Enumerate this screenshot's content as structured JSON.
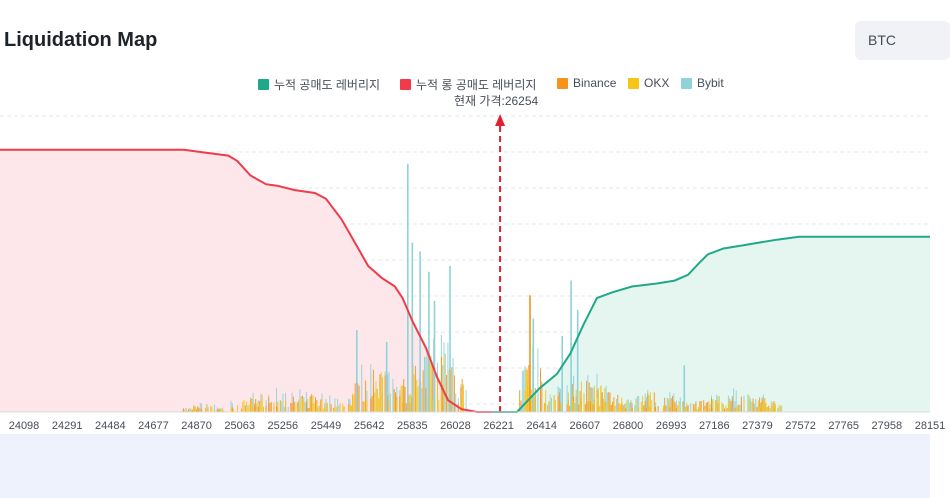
{
  "header": {
    "title": "Liquidation Map",
    "symbol": "BTC"
  },
  "legend": [
    {
      "label": "누적 공매도 레버리지",
      "color": "#1fa88a"
    },
    {
      "label": "누적 롱 공매도 레버리지",
      "color": "#ef3b4a"
    },
    {
      "label": "Binance",
      "color": "#f7931a"
    },
    {
      "label": "OKX",
      "color": "#f5c518"
    },
    {
      "label": "Bybit",
      "color": "#8fd3d8"
    }
  ],
  "current_price_label": "현재 가격:26254",
  "chart_data": {
    "type": "bar",
    "current_price": 26254,
    "xlim": [
      24002,
      28190
    ],
    "x_tick_labels": [
      24098,
      24291,
      24484,
      24677,
      24870,
      25063,
      25256,
      25449,
      25642,
      25835,
      26028,
      26221,
      26414,
      26607,
      26800,
      26993,
      27186,
      27379,
      27572,
      27765,
      27958,
      28151
    ],
    "grid": true,
    "legend_placement": "top-center",
    "cumulative_long": {
      "name": "누적 롱 공매도 레버리지",
      "color": "#ef3b4a",
      "fill": "#fde7ea",
      "points": [
        [
          24002,
          0.898
        ],
        [
          24830,
          0.898
        ],
        [
          24930,
          0.888
        ],
        [
          25030,
          0.878
        ],
        [
          25070,
          0.86
        ],
        [
          25130,
          0.81
        ],
        [
          25200,
          0.78
        ],
        [
          25250,
          0.775
        ],
        [
          25330,
          0.76
        ],
        [
          25420,
          0.75
        ],
        [
          25470,
          0.73
        ],
        [
          25540,
          0.66
        ],
        [
          25600,
          0.58
        ],
        [
          25660,
          0.5
        ],
        [
          25720,
          0.46
        ],
        [
          25780,
          0.43
        ],
        [
          25815,
          0.39
        ],
        [
          25860,
          0.31
        ],
        [
          25920,
          0.22
        ],
        [
          25970,
          0.12
        ],
        [
          26020,
          0.04
        ],
        [
          26080,
          0.01
        ],
        [
          26150,
          0.0
        ],
        [
          26221,
          0.0
        ]
      ]
    },
    "cumulative_short": {
      "name": "누적 공매도 레버리지",
      "color": "#1fa88a",
      "fill": "#e5f5f0",
      "points": [
        [
          26221,
          0.0
        ],
        [
          26330,
          0.0
        ],
        [
          26380,
          0.04
        ],
        [
          26430,
          0.08
        ],
        [
          26510,
          0.13
        ],
        [
          26570,
          0.2
        ],
        [
          26630,
          0.3
        ],
        [
          26690,
          0.39
        ],
        [
          26760,
          0.41
        ],
        [
          26850,
          0.43
        ],
        [
          26960,
          0.44
        ],
        [
          27040,
          0.45
        ],
        [
          27100,
          0.47
        ],
        [
          27150,
          0.51
        ],
        [
          27190,
          0.54
        ],
        [
          27260,
          0.56
        ],
        [
          27340,
          0.57
        ],
        [
          27420,
          0.58
        ],
        [
          27500,
          0.59
        ],
        [
          27600,
          0.6
        ],
        [
          27800,
          0.6
        ],
        [
          28190,
          0.6
        ]
      ]
    },
    "exchange_clusters": [
      {
        "from": 24820,
        "to": 25010,
        "peak": 0.035
      },
      {
        "from": 25040,
        "to": 25550,
        "peak": 0.09
      },
      {
        "from": 25570,
        "to": 25790,
        "peak": 0.2
      },
      {
        "from": 25800,
        "to": 26100,
        "peak": 0.27
      },
      {
        "from": 26340,
        "to": 26460,
        "peak": 0.24
      },
      {
        "from": 26460,
        "to": 26800,
        "peak": 0.14
      },
      {
        "from": 26800,
        "to": 27100,
        "peak": 0.09
      },
      {
        "from": 27110,
        "to": 27520,
        "peak": 0.08
      }
    ],
    "exchange_spikes": [
      {
        "x": 25835,
        "value": 0.85,
        "series": "Bybit"
      },
      {
        "x": 25855,
        "value": 0.58,
        "series": "Bybit"
      },
      {
        "x": 25890,
        "value": 0.55,
        "series": "Bybit"
      },
      {
        "x": 25930,
        "value": 0.48,
        "series": "Bybit"
      },
      {
        "x": 25955,
        "value": 0.38,
        "series": "Bybit"
      },
      {
        "x": 26025,
        "value": 0.5,
        "series": "Bybit"
      },
      {
        "x": 25605,
        "value": 0.28,
        "series": "Bybit"
      },
      {
        "x": 25740,
        "value": 0.24,
        "series": "Bybit"
      },
      {
        "x": 26385,
        "value": 0.4,
        "series": "Binance"
      },
      {
        "x": 26400,
        "value": 0.32,
        "series": "Bybit"
      },
      {
        "x": 26570,
        "value": 0.45,
        "series": "Bybit"
      },
      {
        "x": 26600,
        "value": 0.35,
        "series": "Bybit"
      },
      {
        "x": 26530,
        "value": 0.26,
        "series": "Bybit"
      },
      {
        "x": 27080,
        "value": 0.16,
        "series": "Bybit"
      }
    ]
  }
}
